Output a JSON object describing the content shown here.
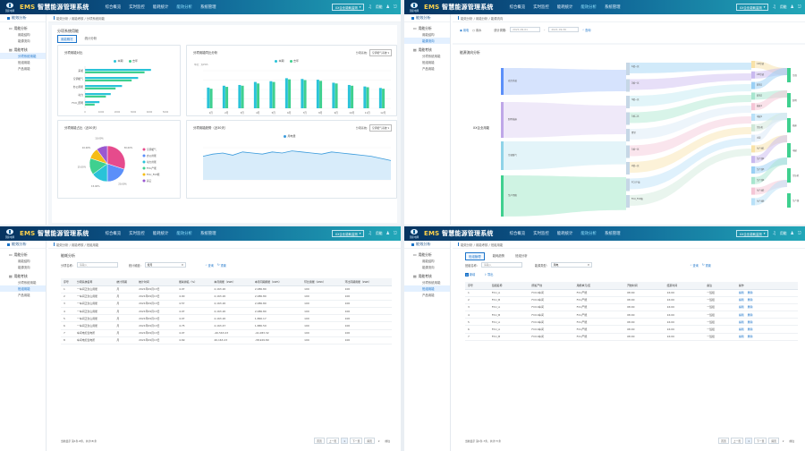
{
  "app": {
    "logo_text": "国家电网",
    "brand_prefix": "EMS",
    "title": "智慧能源管理系统",
    "nav": [
      "综合概览",
      "实时监控",
      "能耗统计",
      "能效分析",
      "系统管理"
    ],
    "active_nav": "能效分析",
    "site": "XX企业能耗监测",
    "user": "用能"
  },
  "colors": {
    "accent": "#1a73c9",
    "cyan": "#29c3d8",
    "green": "#3fd08f",
    "line": "#3b9bdc"
  },
  "sidebar": {
    "header": "能效分析",
    "sec1": "用能分析",
    "sec1_items": [
      "用能结构",
      "能源流向"
    ],
    "sec2": "用能考核",
    "sec2_items": [
      "分项系统用能",
      "班组用能",
      "产品用能"
    ]
  },
  "panel1": {
    "crumb": "能效分析 / 用能考核 / 分项系统用能",
    "section": "分项系统用能",
    "tabs": [
      "用能概况",
      "统计分析"
    ],
    "card1_title": "分项用能对比",
    "card1_legend": [
      "本期",
      "去年"
    ],
    "card2_title": "分项用能同比分析",
    "card2_select_label": "分项系统:",
    "card2_select": "空调暖气系统",
    "card2_legend": [
      "本期",
      "去年"
    ],
    "card3_title": "分项用能占比（近30天）",
    "card4_title": "分项用能趋势（近30天）",
    "card4_select_label": "分项系统:",
    "card4_select": "空调暖气系统",
    "card4_legend": "用电量"
  },
  "chart_data": [
    {
      "type": "bar",
      "title": "分项用能对比",
      "categories": [
        "采暖",
        "空调暖气",
        "办公用能",
        "动力",
        "FCU_照明"
      ],
      "series": [
        {
          "name": "本期",
          "values": [
            4100,
            3300,
            2300,
            1600,
            900
          ]
        },
        {
          "name": "去年",
          "values": [
            3700,
            2900,
            1900,
            1300,
            600
          ]
        }
      ],
      "xticks": [
        "0",
        "1000",
        "2000",
        "3000",
        "4000",
        "5000"
      ]
    },
    {
      "type": "bar",
      "title": "分项用能同比分析",
      "categories": [
        "1月",
        "2月",
        "3月",
        "4月",
        "5月",
        "6月",
        "7月",
        "8月",
        "9月",
        "10月",
        "11月",
        "12月"
      ],
      "series": [
        {
          "name": "本期",
          "values": [
            55,
            60,
            62,
            70,
            72,
            80,
            78,
            76,
            68,
            62,
            58,
            54
          ]
        },
        {
          "name": "去年",
          "values": [
            52,
            57,
            60,
            66,
            70,
            77,
            75,
            73,
            66,
            60,
            56,
            52
          ]
        }
      ],
      "ylabel": "单位：万kWh"
    },
    {
      "type": "pie",
      "title": "分项用能占比（近30天）",
      "slices": [
        {
          "name": "空调暖气",
          "value": 30,
          "color": "#e64b8c"
        },
        {
          "name": "办公用能",
          "value": 20,
          "color": "#5b8ff9"
        },
        {
          "name": "动力用能",
          "value": 15,
          "color": "#29c3d8"
        },
        {
          "name": "FCU产能",
          "value": 15,
          "color": "#3fd08f"
        },
        {
          "name": "FCU_FCP能",
          "value": 10,
          "color": "#f6bd16"
        },
        {
          "name": "其它",
          "value": 10,
          "color": "#9b59d0"
        }
      ],
      "labels": [
        "30.00%",
        "20.00%",
        "15.00%",
        "15.00%",
        "10.00%",
        "10.00%"
      ]
    },
    {
      "type": "area",
      "title": "分项用能趋势（近30天）",
      "series": [
        {
          "name": "用电量",
          "values": [
            22,
            24,
            25,
            23,
            26,
            25,
            24,
            26,
            25,
            27,
            26,
            25,
            24,
            26,
            25,
            24,
            23,
            22,
            20,
            18
          ]
        }
      ]
    },
    {
      "type": "sankey",
      "title": "能源流向分析",
      "root": "XX企业用能"
    },
    {
      "type": "table",
      "title": "能耗分析"
    }
  ],
  "panel2": {
    "crumb": "能效分析 / 用能分析 / 能源流向",
    "radio": [
      "用电",
      "用水"
    ],
    "period_label": "统计周期:",
    "date_from": "2021-09-01",
    "date_to": "2021-09-30",
    "query": "查询",
    "section": "能源流向分析",
    "root": "XX企业用能",
    "left_nodes": [
      "动力系统",
      "照明插座",
      "空调暖气",
      "生产用能"
    ],
    "mid_nodes": [
      "1楼一区",
      "2楼一区",
      "3楼一区",
      "1楼二区",
      "食堂",
      "1楼一区",
      "2楼一区",
      "FCU产能",
      "FCU_FCP能"
    ],
    "right_nodes": [
      "1#空调",
      "2#空调",
      "照明1",
      "照明2",
      "插座1",
      "电梯1",
      "空压机",
      "水泵",
      "生产线1",
      "生产线2",
      "生产线3",
      "生产线4",
      "生产线5",
      "生产线6"
    ],
    "right_labels": [
      "空调",
      "照明",
      "插座",
      "电梯",
      "空压机",
      "生产线"
    ]
  },
  "panel3": {
    "crumb": "能效分析 / 用能考核 / 班组用能",
    "section": "能耗分析",
    "filter_label": "分项名称:",
    "filter_ph": "请输入",
    "type_label": "统计维度:",
    "type_val": "按月",
    "query": "查询",
    "reset": "重置",
    "headers": [
      "序号",
      "分项系统名称",
      "统计周期",
      "统计时间",
      "能耗排名（%）",
      "本月用能（kWh）",
      "本月同期用能（kWh）",
      "环比用能（kWh）",
      "环比同期用能（kWh）"
    ],
    "rows": [
      [
        "1",
        "一车间正负山用能",
        "月",
        "2021年09月13日",
        "4.07",
        "2,163.20",
        "2,086.80",
        "100",
        "100"
      ],
      [
        "2",
        "一车间正负山用能",
        "月",
        "2021年09月13日",
        "4.00",
        "2,163.20",
        "2,086.80",
        "100",
        "100"
      ],
      [
        "3",
        "一车间正负山用能",
        "月",
        "2021年09月13日",
        "4.57",
        "2,163.20",
        "2,086.80",
        "100",
        "100"
      ],
      [
        "4",
        "一车间正负山用能",
        "月",
        "2021年09月13日",
        "4.07",
        "2,163.20",
        "2,086.80",
        "100",
        "100"
      ],
      [
        "5",
        "一车间正负山用能",
        "月",
        "2021年09月13日",
        "4.07",
        "2,163.20",
        "1,860.17",
        "100",
        "100"
      ],
      [
        "6",
        "一车间正负山用能",
        "月",
        "2021年09月13日",
        "4.75",
        "2,163.47",
        "1,880.59",
        "100",
        "100"
      ],
      [
        "7",
        "车间电控变电所",
        "月",
        "2021年09月13日",
        "4.07",
        "-40,563.23",
        "-41,083.32",
        "100",
        "100"
      ],
      [
        "8",
        "车间电控变电所",
        "月",
        "2021年09月13日",
        "4.69",
        "40,163.23",
        "-38,929.89",
        "100",
        "100"
      ]
    ],
    "footer": "当前显示 第1条-8条，共计(8)条",
    "prev": "上一页",
    "next": "下一页",
    "first": "首页",
    "last": "尾页",
    "goto": "前往",
    "page": "1"
  },
  "panel4": {
    "crumb": "能效分析 / 用能考核 / 班组用能",
    "tabs": [
      "班组管理",
      "能耗趋势",
      "班组分析"
    ],
    "f1_label": "班组名称:",
    "f1_ph": "请输入",
    "f2_label": "能源类型:",
    "f2_val": "用电",
    "query": "查询",
    "reset": "重置",
    "add": "新增",
    "export": "导出",
    "headers": [
      "序号",
      "班组名称",
      "所属产线",
      "用能单元/区",
      "开始时间",
      "结束时间",
      "备注",
      "操作"
    ],
    "rows": [
      [
        "1",
        "FCU_A",
        "FCU1车间",
        "FCU产能",
        "08:00",
        "16:00",
        "一班组"
      ],
      [
        "2",
        "FCU_B",
        "FCU1车间",
        "FCU产能",
        "08:00",
        "16:00",
        "一班组"
      ],
      [
        "3",
        "FCU_A",
        "FCU1车间",
        "FCU产能",
        "08:00",
        "16:00",
        "一班组"
      ],
      [
        "4",
        "FCU_B",
        "FCU1车间",
        "FCU产能",
        "08:00",
        "16:00",
        "一班组"
      ],
      [
        "5",
        "FCU_A",
        "FCU1车间",
        "FCU产能",
        "08:00",
        "16:00",
        "一班组"
      ],
      [
        "6",
        "FCU_A",
        "FCU1车间",
        "FCU产能",
        "08:00",
        "16:00",
        "一班组"
      ],
      [
        "7",
        "FCU_B",
        "FCU1车间",
        "FCU产能",
        "08:00",
        "16:00",
        "一班组"
      ]
    ],
    "edit": "编辑",
    "delete": "删除",
    "footer": "当前显示 第1条-7条，共计(7)条",
    "prev": "上一页",
    "next": "下一页",
    "first": "首页",
    "last": "尾页",
    "goto": "前往",
    "page": "1"
  }
}
